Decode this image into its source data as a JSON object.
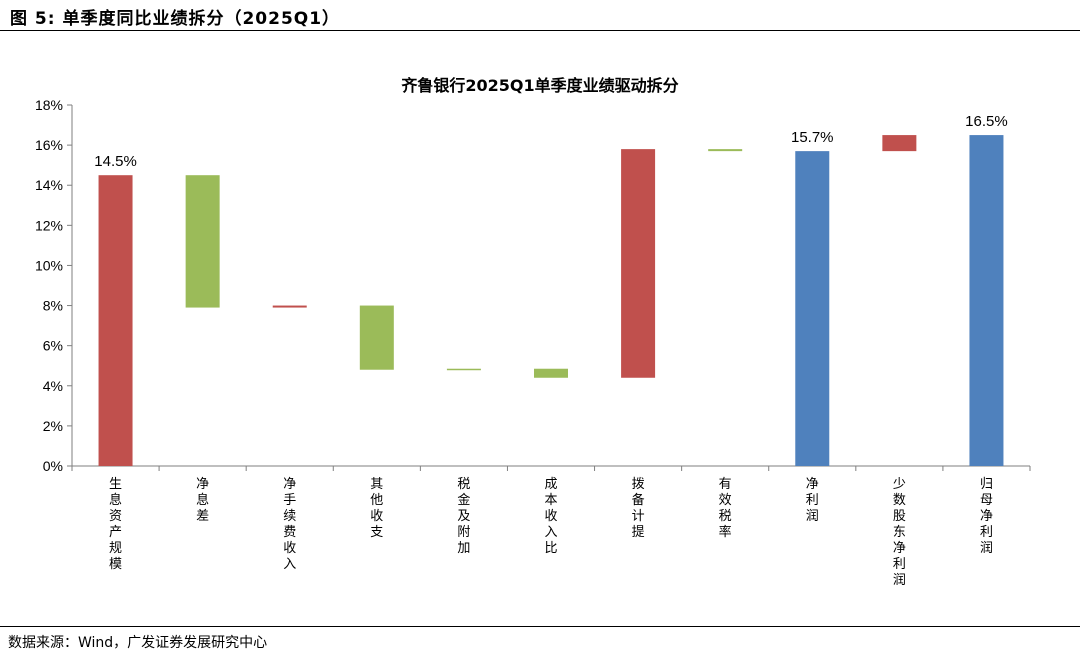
{
  "figure": {
    "title": "图 5: 单季度同比业绩拆分（2025Q1）",
    "source": "数据来源：Wind，广发证券发展研究中心"
  },
  "colors": {
    "red": "#C0504D",
    "green": "#9BBB59",
    "blue": "#4F81BD"
  },
  "chart_data": {
    "type": "bar",
    "subtype": "waterfall",
    "title": "齐鲁银行2025Q1单季度业绩驱动拆分",
    "xlabel": "",
    "ylabel": "",
    "ylim": [
      0,
      18
    ],
    "y_ticks": [
      0,
      2,
      4,
      6,
      8,
      10,
      12,
      14,
      16,
      18
    ],
    "y_tick_labels": [
      "0%",
      "2%",
      "4%",
      "6%",
      "8%",
      "10%",
      "12%",
      "14%",
      "16%",
      "18%"
    ],
    "grid": false,
    "legend": "none",
    "categories": [
      "生息资产规模",
      "净息差",
      "净手续费收入",
      "其他收支",
      "税金及附加",
      "成本收入比",
      "拨备计提",
      "有效税率",
      "净利润",
      "少数股东净利润",
      "归母净利润"
    ],
    "bars": [
      {
        "category": "生息资产规模",
        "start": 0,
        "end": 14.5,
        "color": "red",
        "label": "14.5%"
      },
      {
        "category": "净息差",
        "start": 14.5,
        "end": 7.9,
        "color": "green",
        "label": ""
      },
      {
        "category": "净手续费收入",
        "start": 7.9,
        "end": 8.0,
        "color": "red",
        "label": ""
      },
      {
        "category": "其他收支",
        "start": 8.0,
        "end": 4.8,
        "color": "green",
        "label": ""
      },
      {
        "category": "税金及附加",
        "start": 4.8,
        "end": 4.85,
        "color": "green",
        "label": ""
      },
      {
        "category": "成本收入比",
        "start": 4.85,
        "end": 4.4,
        "color": "green",
        "label": ""
      },
      {
        "category": "拨备计提",
        "start": 4.4,
        "end": 15.8,
        "color": "red",
        "label": ""
      },
      {
        "category": "有效税率",
        "start": 15.8,
        "end": 15.7,
        "color": "green",
        "label": ""
      },
      {
        "category": "净利润",
        "start": 0,
        "end": 15.7,
        "color": "blue",
        "label": "15.7%"
      },
      {
        "category": "少数股东净利润",
        "start": 15.7,
        "end": 16.5,
        "color": "red",
        "label": ""
      },
      {
        "category": "归母净利润",
        "start": 0,
        "end": 16.5,
        "color": "blue",
        "label": "16.5%"
      }
    ]
  }
}
